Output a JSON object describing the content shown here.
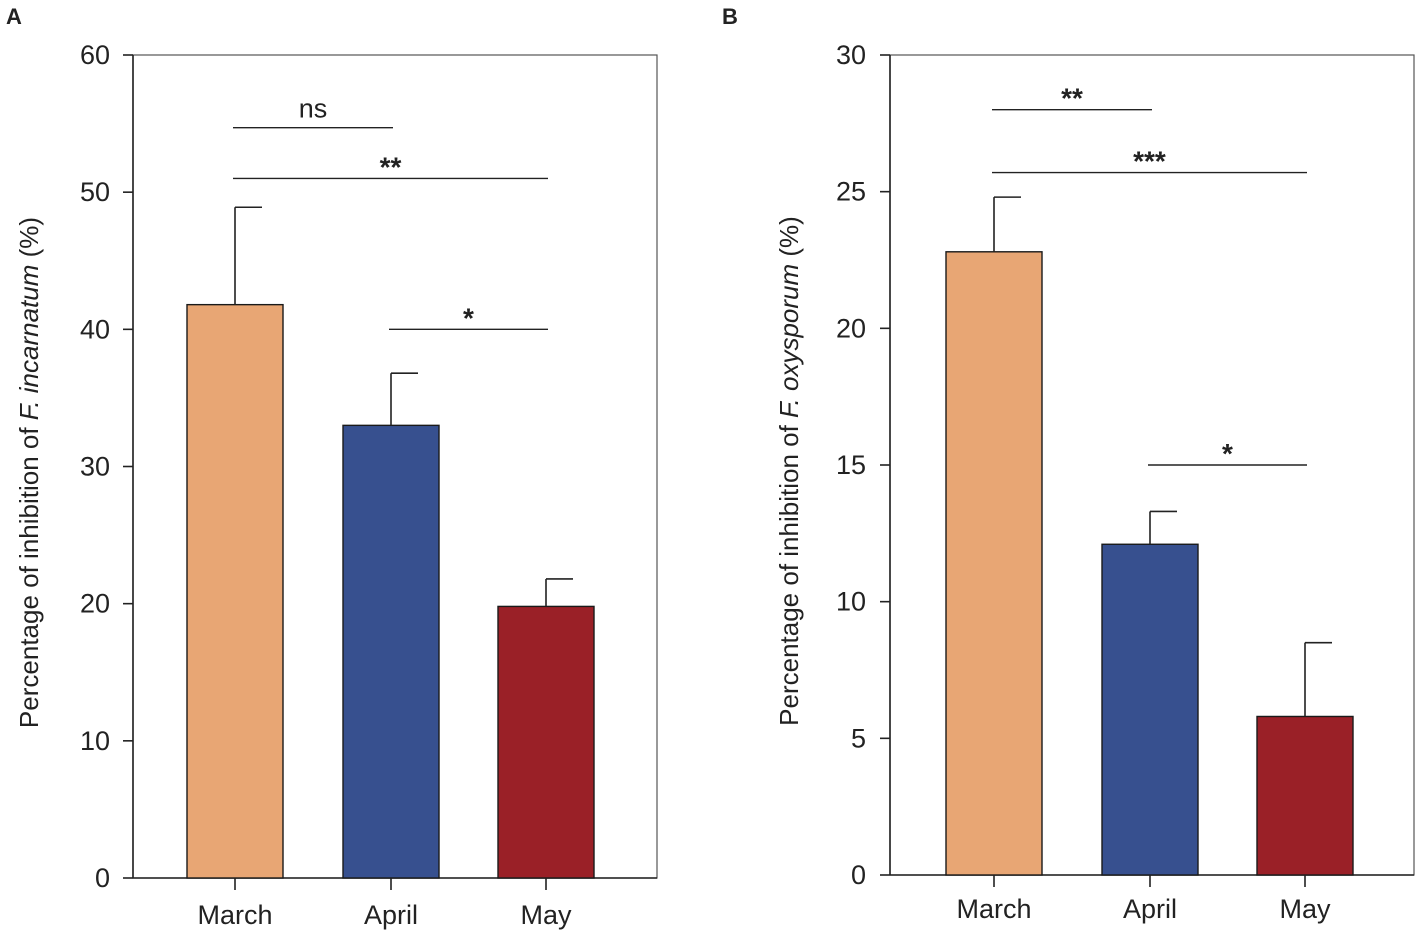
{
  "figure": {
    "panel_labels": [
      "A",
      "B"
    ]
  },
  "chart_data": [
    {
      "type": "bar",
      "panel": "A",
      "title": "",
      "xlabel": "",
      "ylabel_prefix": "Percentage of inhibition of ",
      "ylabel_species": "F. incarnatum",
      "ylabel_suffix": " (%)",
      "ylim": [
        0,
        60
      ],
      "yticks": [
        0,
        10,
        20,
        30,
        40,
        50,
        60
      ],
      "categories": [
        "March",
        "April",
        "May"
      ],
      "values": [
        41.8,
        33.0,
        19.8
      ],
      "errors": [
        7.1,
        3.8,
        2.0
      ],
      "colors": [
        "#E8A674",
        "#37508F",
        "#9A2027"
      ],
      "significance": [
        {
          "from": 0,
          "to": 1,
          "label": "ns",
          "y": 54.7
        },
        {
          "from": 0,
          "to": 2,
          "label": "**",
          "y": 51.0
        },
        {
          "from": 1,
          "to": 2,
          "label": "*",
          "y": 40.0
        }
      ]
    },
    {
      "type": "bar",
      "panel": "B",
      "title": "",
      "xlabel": "",
      "ylabel_prefix": "Percentage of inhibition of ",
      "ylabel_species": "F. oxysporum",
      "ylabel_suffix": " (%)",
      "ylim": [
        0,
        30
      ],
      "yticks": [
        0,
        5,
        10,
        15,
        20,
        25,
        30
      ],
      "categories": [
        "March",
        "April",
        "May"
      ],
      "values": [
        22.8,
        12.1,
        5.8
      ],
      "errors": [
        2.0,
        1.2,
        2.7
      ],
      "colors": [
        "#E8A674",
        "#37508F",
        "#9A2027"
      ],
      "significance": [
        {
          "from": 0,
          "to": 1,
          "label": "**",
          "y": 28.0
        },
        {
          "from": 0,
          "to": 2,
          "label": "***",
          "y": 25.7
        },
        {
          "from": 1,
          "to": 2,
          "label": "*",
          "y": 15.0
        }
      ]
    }
  ]
}
